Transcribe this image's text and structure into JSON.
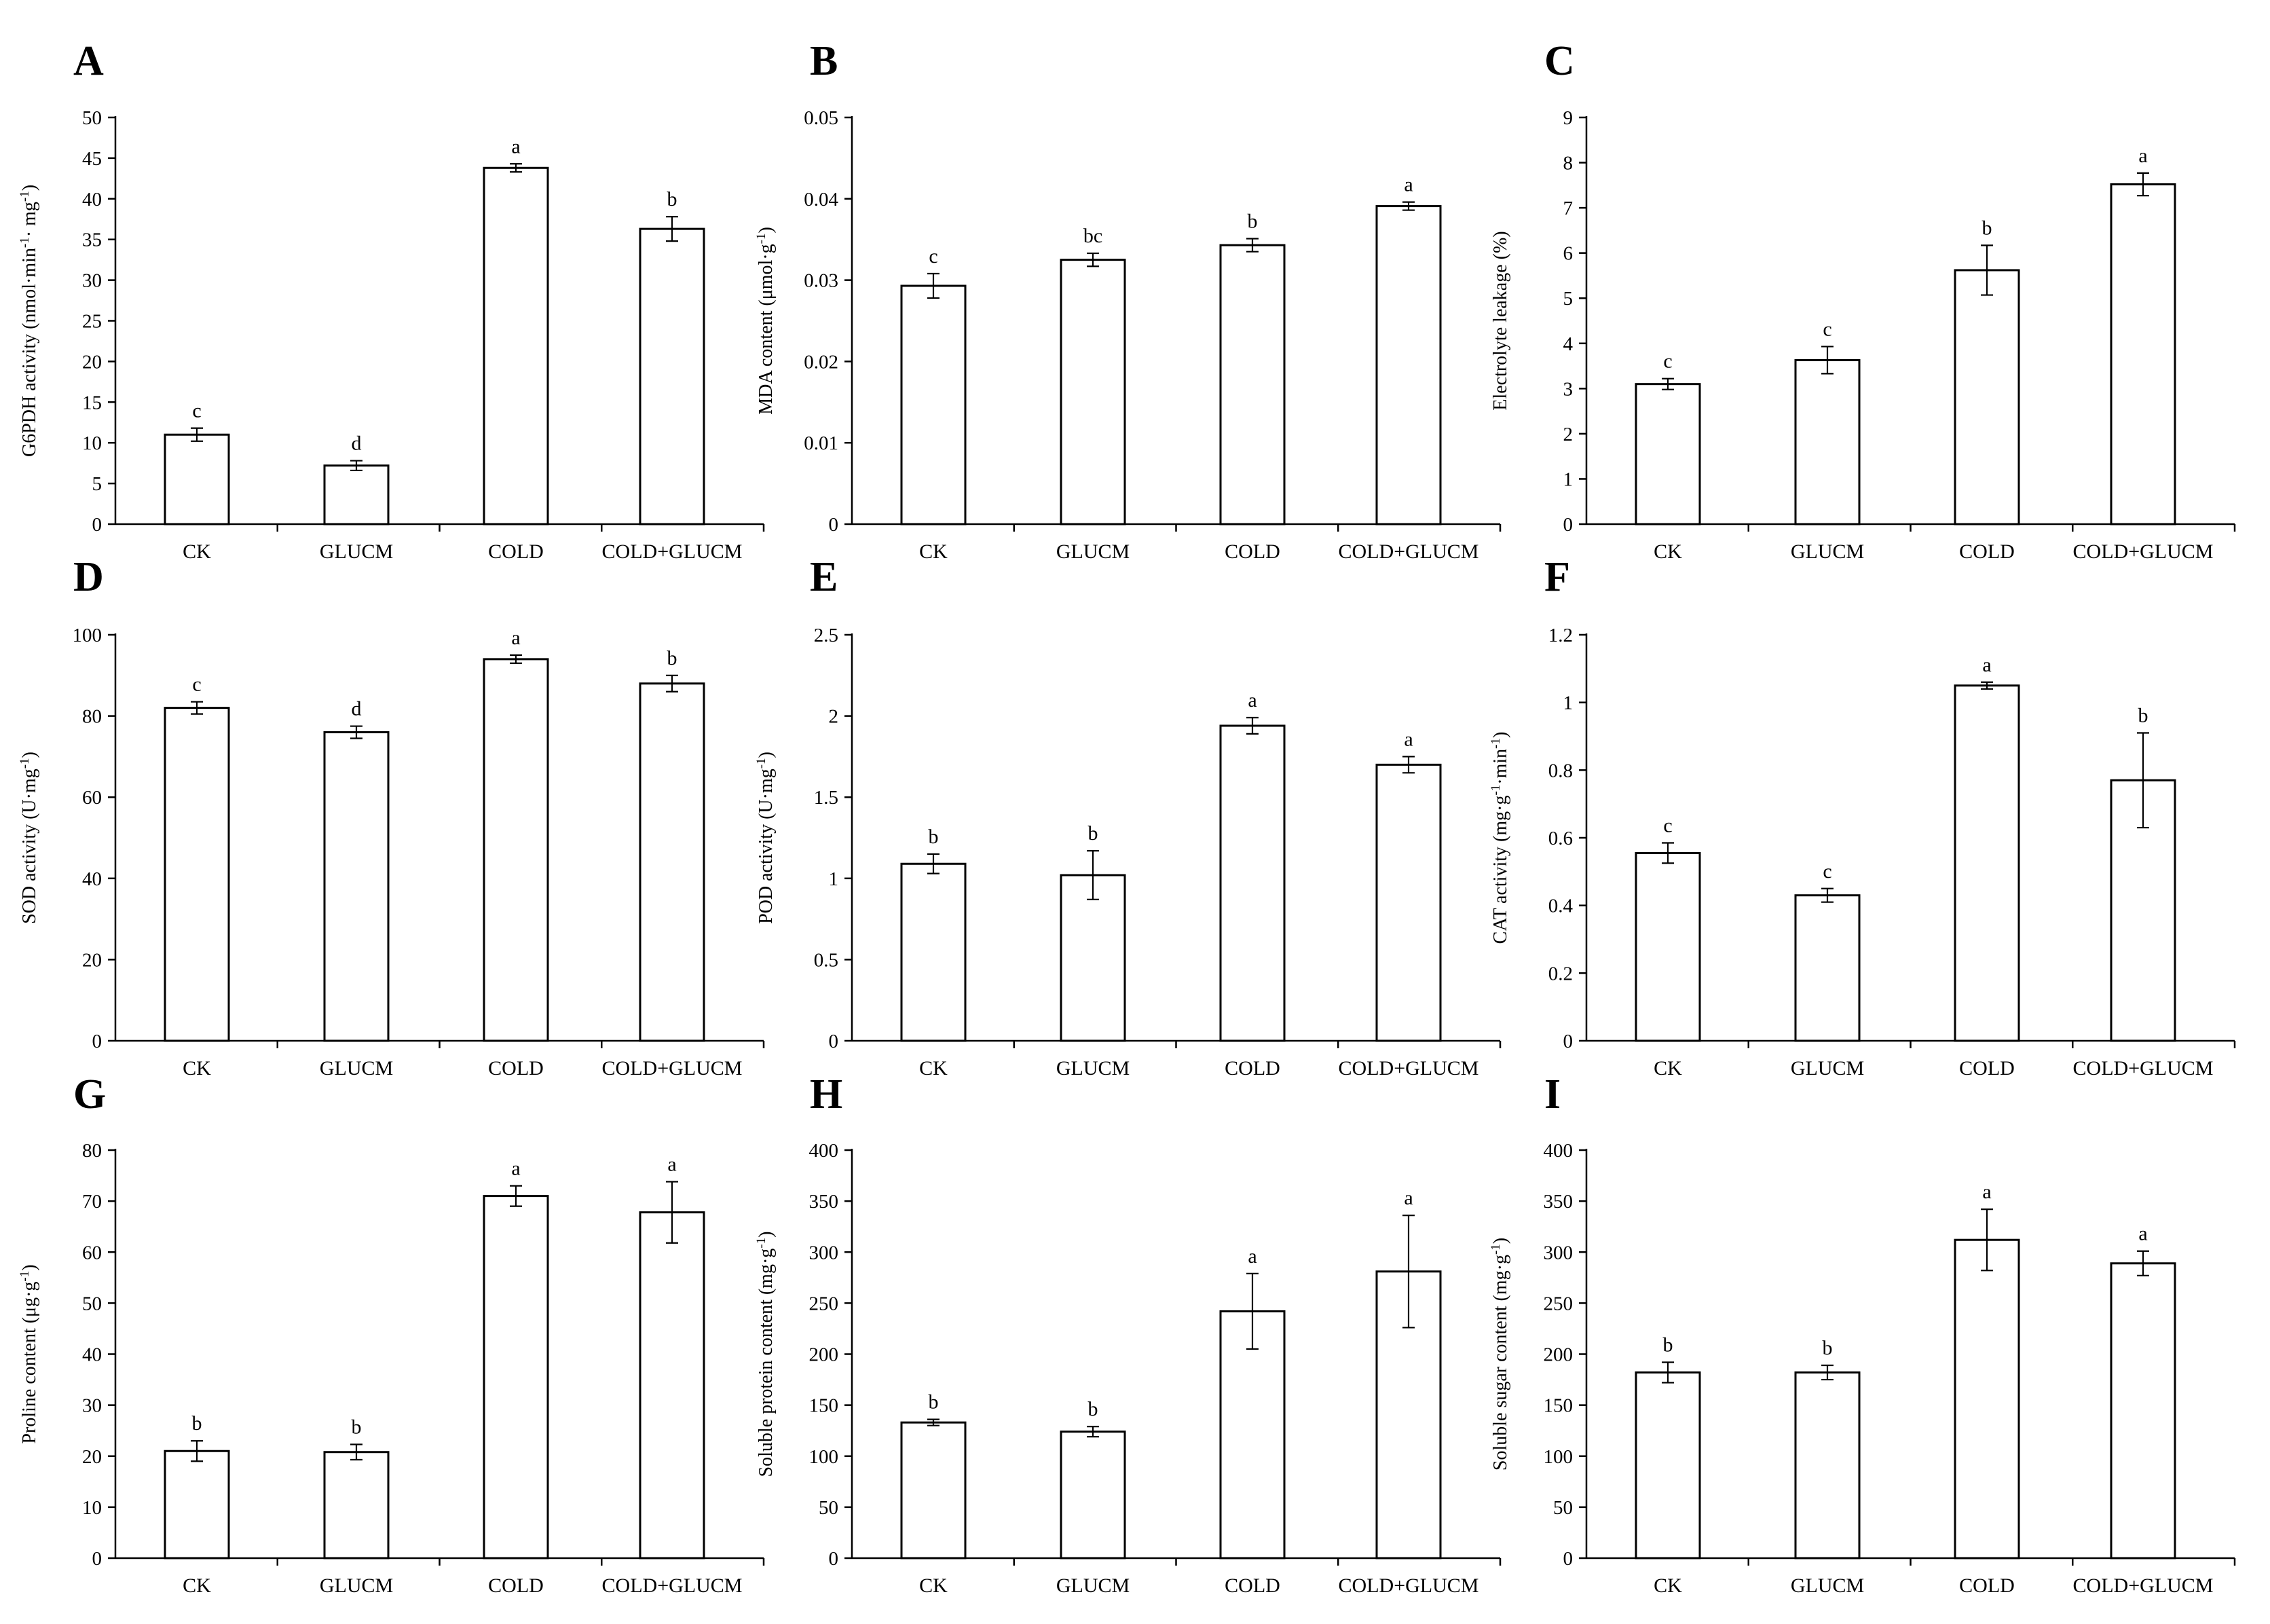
{
  "chart_data": [
    {
      "panel": "A",
      "type": "bar",
      "ylabel": "G6PDH activity (nmol·min-1· mg-1)",
      "ylim": [
        0,
        50
      ],
      "yticks": [
        "0",
        "5",
        "10",
        "15",
        "20",
        "25",
        "30",
        "35",
        "40",
        "45",
        "50"
      ],
      "categories": [
        "CK",
        "GLUCM",
        "COLD",
        "COLD+GLUCM"
      ],
      "values": [
        11.0,
        7.2,
        43.8,
        36.3
      ],
      "errors": [
        0.8,
        0.6,
        0.5,
        1.5
      ],
      "letters": [
        "c",
        "d",
        "a",
        "b"
      ]
    },
    {
      "panel": "B",
      "type": "bar",
      "ylabel": "MDA content (μmol·g-1)",
      "ylim": [
        0,
        0.05
      ],
      "yticks": [
        "0",
        "0.01",
        "0.02",
        "0.03",
        "0.04",
        "0.05"
      ],
      "categories": [
        "CK",
        "GLUCM",
        "COLD",
        "COLD+GLUCM"
      ],
      "values": [
        0.0293,
        0.0325,
        0.0343,
        0.0391
      ],
      "errors": [
        0.0015,
        0.0008,
        0.0008,
        0.0005
      ],
      "letters": [
        "c",
        "bc",
        "b",
        "a"
      ]
    },
    {
      "panel": "C",
      "type": "bar",
      "ylabel": "Electrolyte leakage (%)",
      "ylim": [
        0,
        9
      ],
      "yticks": [
        "0",
        "1",
        "2",
        "3",
        "4",
        "5",
        "6",
        "7",
        "8",
        "9"
      ],
      "categories": [
        "CK",
        "GLUCM",
        "COLD",
        "COLD+GLUCM"
      ],
      "values": [
        3.1,
        3.63,
        5.62,
        7.52
      ],
      "errors": [
        0.12,
        0.3,
        0.55,
        0.25
      ],
      "letters": [
        "c",
        "c",
        "b",
        "a"
      ]
    },
    {
      "panel": "D",
      "type": "bar",
      "ylabel": "SOD activity (U·mg-1)",
      "ylim": [
        0,
        100
      ],
      "yticks": [
        "0",
        "20",
        "40",
        "60",
        "80",
        "100"
      ],
      "categories": [
        "CK",
        "GLUCM",
        "COLD",
        "COLD+GLUCM"
      ],
      "values": [
        82.0,
        76.0,
        94.0,
        88.0
      ],
      "errors": [
        1.5,
        1.5,
        1.0,
        2.0
      ],
      "letters": [
        "c",
        "d",
        "a",
        "b"
      ]
    },
    {
      "panel": "E",
      "type": "bar",
      "ylabel": "POD activity (U·mg-1)",
      "ylim": [
        0,
        2.5
      ],
      "yticks": [
        "0",
        "0.5",
        "1",
        "1.5",
        "2",
        "2.5"
      ],
      "categories": [
        "CK",
        "GLUCM",
        "COLD",
        "COLD+GLUCM"
      ],
      "values": [
        1.09,
        1.02,
        1.94,
        1.7
      ],
      "errors": [
        0.06,
        0.15,
        0.05,
        0.05
      ],
      "letters": [
        "b",
        "b",
        "a",
        "a"
      ]
    },
    {
      "panel": "F",
      "type": "bar",
      "ylabel": "CAT activity (mg·g-1·min-1)",
      "ylim": [
        0,
        1.2
      ],
      "yticks": [
        "0",
        "0.2",
        "0.4",
        "0.6",
        "0.8",
        "1",
        "1.2"
      ],
      "categories": [
        "CK",
        "GLUCM",
        "COLD",
        "COLD+GLUCM"
      ],
      "values": [
        0.555,
        0.43,
        1.05,
        0.77
      ],
      "errors": [
        0.03,
        0.02,
        0.01,
        0.14
      ],
      "letters": [
        "c",
        "c",
        "a",
        "b"
      ]
    },
    {
      "panel": "G",
      "type": "bar",
      "ylabel": "Proline content (μg·g-1)",
      "ylim": [
        0,
        80
      ],
      "yticks": [
        "0",
        "10",
        "20",
        "30",
        "40",
        "50",
        "60",
        "70",
        "80"
      ],
      "categories": [
        "CK",
        "GLUCM",
        "COLD",
        "COLD+GLUCM"
      ],
      "values": [
        21.0,
        20.8,
        71.0,
        67.8
      ],
      "errors": [
        2.0,
        1.5,
        2.0,
        6.0
      ],
      "letters": [
        "b",
        "b",
        "a",
        "a"
      ]
    },
    {
      "panel": "H",
      "type": "bar",
      "ylabel": "Soluble protein content (mg·g-1)",
      "ylim": [
        0,
        400
      ],
      "yticks": [
        "0",
        "50",
        "100",
        "150",
        "200",
        "250",
        "300",
        "350",
        "400"
      ],
      "categories": [
        "CK",
        "GLUCM",
        "COLD",
        "COLD+GLUCM"
      ],
      "values": [
        133.0,
        124.0,
        242.0,
        281.0
      ],
      "errors": [
        3.0,
        5.0,
        37.0,
        55.0
      ],
      "letters": [
        "b",
        "b",
        "a",
        "a"
      ]
    },
    {
      "panel": "I",
      "type": "bar",
      "ylabel": "Soluble sugar content (mg·g-1)",
      "ylim": [
        0,
        400
      ],
      "yticks": [
        "0",
        "50",
        "100",
        "150",
        "200",
        "250",
        "300",
        "350",
        "400"
      ],
      "categories": [
        "CK",
        "GLUCM",
        "COLD",
        "COLD+GLUCM"
      ],
      "values": [
        182.0,
        182.0,
        312.0,
        289.0
      ],
      "errors": [
        10.0,
        7.0,
        30.0,
        12.0
      ],
      "letters": [
        "b",
        "b",
        "a",
        "a"
      ]
    }
  ]
}
